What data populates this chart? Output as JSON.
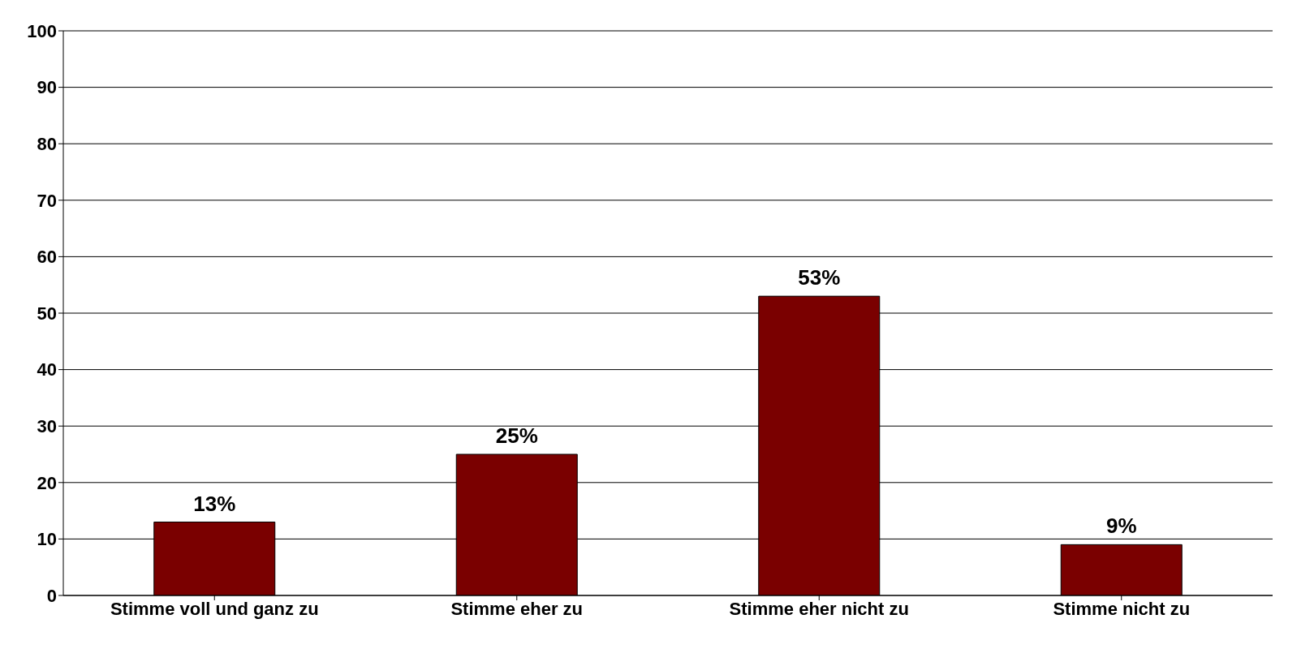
{
  "chart_data": {
    "type": "bar",
    "categories": [
      "Stimme voll und ganz zu",
      "Stimme eher zu",
      "Stimme eher nicht zu",
      "Stimme nicht zu"
    ],
    "values": [
      13,
      25,
      53,
      9
    ],
    "value_labels": [
      "13%",
      "25%",
      "53%",
      "9%"
    ],
    "color": "#7a0000",
    "ylim": [
      0,
      100
    ],
    "yticks": [
      0,
      10,
      20,
      30,
      40,
      50,
      60,
      70,
      80,
      90,
      100
    ],
    "grid": "y"
  }
}
